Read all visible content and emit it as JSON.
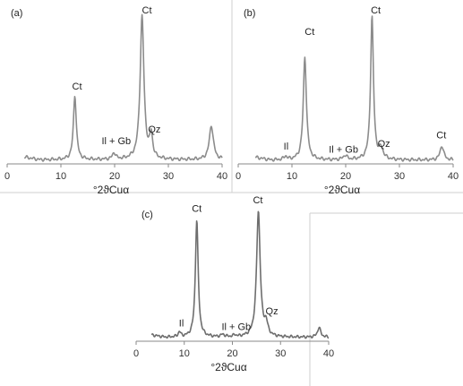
{
  "chart_data": [
    {
      "type": "line",
      "panel_label": "(a)",
      "xlabel": "°2ϑCuα",
      "xlim": [
        0,
        40
      ],
      "xticks": [
        0,
        10,
        20,
        30,
        40
      ],
      "peaks": [
        {
          "x": 12.6,
          "y": 0.45
        },
        {
          "x": 19.9,
          "y": 0.045
        },
        {
          "x": 25.1,
          "y": 1.0
        },
        {
          "x": 26.8,
          "y": 0.16
        },
        {
          "x": 38.0,
          "y": 0.24
        }
      ],
      "baseline": 0.01,
      "annotations": [
        {
          "text": "Ct",
          "x": 13.0,
          "y": 0.5
        },
        {
          "text": "Il + Gb",
          "x": 20.3,
          "y": 0.12
        },
        {
          "text": "Ct",
          "x": 26.0,
          "y": 1.03
        },
        {
          "text": "Qz",
          "x": 27.4,
          "y": 0.2
        }
      ]
    },
    {
      "type": "line",
      "panel_label": "(b)",
      "xlabel": "°2ϑCuα",
      "xlim": [
        0,
        40
      ],
      "xticks": [
        0,
        10,
        20,
        30,
        40
      ],
      "peaks": [
        {
          "x": 8.8,
          "y": 0.025
        },
        {
          "x": 12.4,
          "y": 0.72
        },
        {
          "x": 19.9,
          "y": 0.03
        },
        {
          "x": 24.9,
          "y": 1.0
        },
        {
          "x": 26.6,
          "y": 0.07
        },
        {
          "x": 37.9,
          "y": 0.1
        }
      ],
      "baseline": 0.008,
      "annotations": [
        {
          "text": "Il",
          "x": 8.9,
          "y": 0.08
        },
        {
          "text": "Ct",
          "x": 13.3,
          "y": 0.88
        },
        {
          "text": "Il + Gb",
          "x": 19.6,
          "y": 0.06
        },
        {
          "text": "Ct",
          "x": 25.6,
          "y": 1.03
        },
        {
          "text": "Qz",
          "x": 27.1,
          "y": 0.1
        },
        {
          "text": "Ct",
          "x": 37.8,
          "y": 0.16
        }
      ]
    },
    {
      "type": "line",
      "panel_label": "(c)",
      "xlabel": "°2ϑCuα",
      "xlim": [
        0,
        40
      ],
      "xticks": [
        0,
        10,
        20,
        30,
        40
      ],
      "peaks": [
        {
          "x": 9.0,
          "y": 0.04
        },
        {
          "x": 12.6,
          "y": 0.97
        },
        {
          "x": 18.0,
          "y": 0.02
        },
        {
          "x": 20.5,
          "y": 0.015
        },
        {
          "x": 25.4,
          "y": 1.04
        },
        {
          "x": 27.0,
          "y": 0.1
        },
        {
          "x": 38.0,
          "y": 0.08
        }
      ],
      "baseline": 0.01,
      "annotations": [
        {
          "text": "Il",
          "x": 9.4,
          "y": 0.1
        },
        {
          "text": "Ct",
          "x": 12.6,
          "y": 1.05
        },
        {
          "text": "Il + Gb",
          "x": 20.8,
          "y": 0.07
        },
        {
          "text": "Ct",
          "x": 25.3,
          "y": 1.12
        },
        {
          "text": "Qz",
          "x": 28.2,
          "y": 0.2
        }
      ]
    }
  ]
}
